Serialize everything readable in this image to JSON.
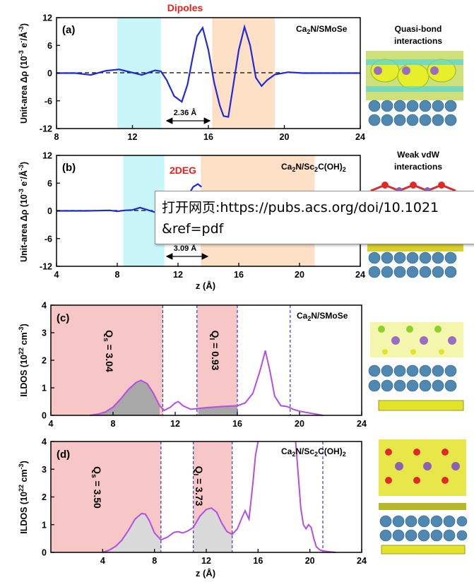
{
  "panels": [
    {
      "letter": "(a)",
      "system_main": "Ca",
      "system_sub": "2",
      "system_rest": "N/SMoSe",
      "top_label": "Dipoles",
      "arrow_label": "2.36 Å",
      "side_caption": [
        "Quasi-bond",
        "interactions"
      ]
    },
    {
      "letter": "(b)",
      "system_main": "Ca",
      "system_sub": "2",
      "system_rest": "N/Sc",
      "system_sub2": "2",
      "system_rest2": "C(OH)",
      "system_sub3": "2",
      "inner_label": "2DEG",
      "arrow_label": "3.09 Å",
      "side_caption": [
        "Weak vdW",
        "interactions"
      ]
    },
    {
      "letter": "(c)",
      "system_main": "Ca",
      "system_sub": "2",
      "system_rest": "N/SMoSe",
      "q_left": {
        "sym": "Q",
        "sub": "s",
        "value": " = 3.04"
      },
      "q_right": {
        "sym": "Q",
        "sub": "I",
        "value": " = 0.93"
      }
    },
    {
      "letter": "(d)",
      "system_main": "Ca",
      "system_sub": "2",
      "system_rest": "N/Sc",
      "system_sub2": "2",
      "system_rest2": "C(OH)",
      "system_sub3": "2",
      "q_left": {
        "sym": "Q",
        "sub": "s",
        "value": " = 3.50"
      },
      "q_right": {
        "sym": "Q",
        "sub": "I",
        "value": " = 3.73"
      }
    }
  ],
  "axis_text": {
    "drho_ylabel_main": "Unit-area Δρ (10",
    "drho_ylabel_exp": "-3",
    "drho_ylabel_unit": " e",
    "drho_ylabel_exp2": "-",
    "drho_ylabel_tail": "/Å",
    "drho_ylabel_exp3": "-3",
    "drho_ylabel_end": ")",
    "ildos_ylabel_main": "ILDOS (10",
    "ildos_ylabel_exp": "22",
    "ildos_ylabel_unit": " cm",
    "ildos_ylabel_exp2": "-3",
    "ildos_ylabel_end": ")",
    "xlabel": "z (Å)"
  },
  "tooltip": {
    "line1": "打开网页:https://pubs.acs.org/doi/10.1021",
    "line2": "&ref=pdf"
  },
  "colors": {
    "curve_blue": "#1f2bd6",
    "cyan_band": "#c8f5f7",
    "orange_band": "#fde0c6",
    "red_band": "#f7c6c6",
    "purple_curve": "#b34fe0",
    "grey_fill_c": "#a8a8a8",
    "grey_fill_d": "#d9d9d9",
    "dashed_blue": "#2a3cc8",
    "label_red": "#e8211b"
  },
  "chart_data": [
    {
      "type": "line",
      "panel": "(a)",
      "xlabel": "",
      "ylabel": "Unit-area Δρ (10^-3 e^-/Å^-3)",
      "xlim": [
        8,
        24
      ],
      "ylim": [
        -12,
        12
      ],
      "xticks": [
        8,
        12,
        16,
        20,
        24
      ],
      "yticks": [
        -12,
        -6,
        0,
        6,
        12
      ],
      "reference_line": {
        "y": 0,
        "style": "dashed"
      },
      "shaded_regions": [
        {
          "x0": 11.2,
          "x1": 13.5,
          "color": "cyan"
        },
        {
          "x0": 16.2,
          "x1": 19.5,
          "color": "orange"
        }
      ],
      "annotations": [
        {
          "text": "Dipoles"
        },
        {
          "text": "2.36 Å",
          "x0": 14.0,
          "x1": 16.3
        }
      ],
      "series": [
        {
          "x": [
            8.0,
            9.0,
            9.8,
            10.6,
            11.3,
            11.8,
            12.5,
            12.9,
            13.2,
            13.5,
            13.8,
            14.2,
            14.6,
            14.9,
            15.2,
            15.4,
            15.7,
            16.0,
            16.3,
            16.6,
            16.8,
            17.05,
            17.3,
            17.6,
            17.9,
            18.2,
            18.5,
            18.8,
            19.1,
            19.5,
            20.2,
            21.0,
            24.0
          ],
          "y": [
            0,
            0,
            -0.4,
            0.5,
            0.8,
            0.3,
            -0.4,
            0.2,
            0.6,
            0.4,
            -1.5,
            -5.0,
            -6.2,
            -2.5,
            4.0,
            8.0,
            9.8,
            5.0,
            -2.0,
            -7.0,
            -9.3,
            -9.5,
            -3.0,
            5.0,
            10.0,
            6.0,
            -1.0,
            -2.8,
            -1.5,
            -0.3,
            0.2,
            0.0,
            0.0
          ]
        }
      ]
    },
    {
      "type": "line",
      "panel": "(b)",
      "xlabel": "z (Å)",
      "ylabel": "Unit-area Δρ (10^-3 e^-/Å^-3)",
      "xlim": [
        4,
        24
      ],
      "ylim": [
        -12,
        12
      ],
      "xticks": [
        4,
        8,
        12,
        16,
        20,
        24
      ],
      "yticks": [
        -12,
        -6,
        0,
        6,
        12
      ],
      "reference_line": {
        "y": 0,
        "style": "dashed"
      },
      "shaded_regions": [
        {
          "x0": 8.4,
          "x1": 11.1,
          "color": "cyan"
        },
        {
          "x0": 13.5,
          "x1": 21.0,
          "color": "orange"
        }
      ],
      "annotations": [
        {
          "text": "2DEG"
        },
        {
          "text": "3.09 Å",
          "x0": 11.0,
          "x1": 14.0
        }
      ],
      "series": [
        {
          "x": [
            4.0,
            6.0,
            7.5,
            8.0,
            8.5,
            9.0,
            9.5,
            10.0,
            10.5,
            11.0,
            11.5,
            12.0,
            12.4,
            12.7,
            13.0,
            13.3,
            13.55
          ],
          "y": [
            0,
            0,
            0.1,
            -0.1,
            0.1,
            0.2,
            0.7,
            0.2,
            -0.3,
            0.1,
            0.4,
            0.9,
            1.8,
            3.5,
            5.2,
            5.8,
            5.2
          ]
        }
      ]
    },
    {
      "type": "area",
      "panel": "(c)",
      "xlabel": "",
      "ylabel": "ILDOS (10^22 cm^-3)",
      "xlim": [
        4,
        24
      ],
      "ylim": [
        0,
        4
      ],
      "xticks": [
        4,
        8,
        12,
        16,
        20,
        24
      ],
      "yticks": [
        0,
        1,
        2,
        3,
        4
      ],
      "shaded_regions": [
        {
          "x0": 4.0,
          "x1": 11.2,
          "color": "red"
        },
        {
          "x0": 13.4,
          "x1": 16.0,
          "color": "red"
        }
      ],
      "vertical_dashed_lines": [
        11.2,
        13.4,
        16.0,
        19.4
      ],
      "annotations": [
        {
          "text": "Qs = 3.04"
        },
        {
          "text": "QI = 0.93"
        }
      ],
      "series": [
        {
          "x": [
            6.5,
            7.0,
            7.5,
            8.0,
            8.5,
            9.0,
            9.5,
            9.8,
            10.2,
            10.6,
            11.0,
            11.3,
            11.7,
            12.0,
            12.2,
            12.5,
            13.0,
            13.5,
            14.0,
            15.0,
            16.0,
            16.5,
            17.0,
            17.5,
            17.8,
            18.1,
            18.4,
            18.8,
            19.2,
            19.6,
            20.0,
            20.5,
            21.0,
            21.5
          ],
          "y": [
            0.0,
            0.04,
            0.12,
            0.3,
            0.6,
            0.95,
            1.2,
            1.27,
            1.15,
            0.8,
            0.35,
            0.18,
            0.3,
            0.45,
            0.5,
            0.35,
            0.22,
            0.25,
            0.28,
            0.32,
            0.35,
            0.45,
            0.8,
            1.7,
            2.35,
            1.6,
            0.7,
            0.35,
            0.32,
            0.22,
            0.15,
            0.1,
            0.05,
            0.0
          ]
        }
      ]
    },
    {
      "type": "area",
      "panel": "(d)",
      "xlabel": "z (Å)",
      "ylabel": "ILDOS (10^22 cm^-3)",
      "xlim": [
        0,
        24
      ],
      "ylim": [
        0,
        4
      ],
      "xticks": [
        4,
        8,
        12,
        16,
        20,
        24
      ],
      "yticks": [
        0,
        1,
        2,
        3,
        4
      ],
      "shaded_regions": [
        {
          "x0": 0.0,
          "x1": 8.5,
          "color": "red"
        },
        {
          "x0": 11.0,
          "x1": 14.0,
          "color": "red"
        }
      ],
      "vertical_dashed_lines": [
        8.5,
        11.0,
        14.0,
        21.0
      ],
      "annotations": [
        {
          "text": "Qs = 3.50"
        },
        {
          "text": "QI = 3.73"
        }
      ],
      "series": [
        {
          "x": [
            4.0,
            4.5,
            5.0,
            5.5,
            6.0,
            6.5,
            7.0,
            7.3,
            7.6,
            8.0,
            8.5,
            9.0,
            9.5,
            9.8,
            10.2,
            10.6,
            11.0,
            11.5,
            12.0,
            12.4,
            12.8,
            13.2,
            13.6,
            14.0,
            14.4,
            14.8,
            15.0,
            15.3,
            15.6,
            15.8,
            16.0
          ],
          "y": [
            0.0,
            0.08,
            0.22,
            0.45,
            0.8,
            1.2,
            1.4,
            1.38,
            1.15,
            0.7,
            0.45,
            0.55,
            0.72,
            0.75,
            0.7,
            0.78,
            0.9,
            1.3,
            1.55,
            1.6,
            1.45,
            1.05,
            0.75,
            0.65,
            0.85,
            1.3,
            1.5,
            1.2,
            2.5,
            3.5,
            4.0
          ]
        },
        {
          "x": [
            18.9,
            19.1,
            19.3,
            19.5,
            19.7,
            19.9,
            20.1,
            20.3,
            20.5,
            20.8,
            21.2,
            21.6,
            22.0
          ],
          "y": [
            4.0,
            2.8,
            1.6,
            1.0,
            0.85,
            1.0,
            0.9,
            0.5,
            0.2,
            0.08,
            0.04,
            0.02,
            0.0
          ]
        }
      ]
    }
  ]
}
